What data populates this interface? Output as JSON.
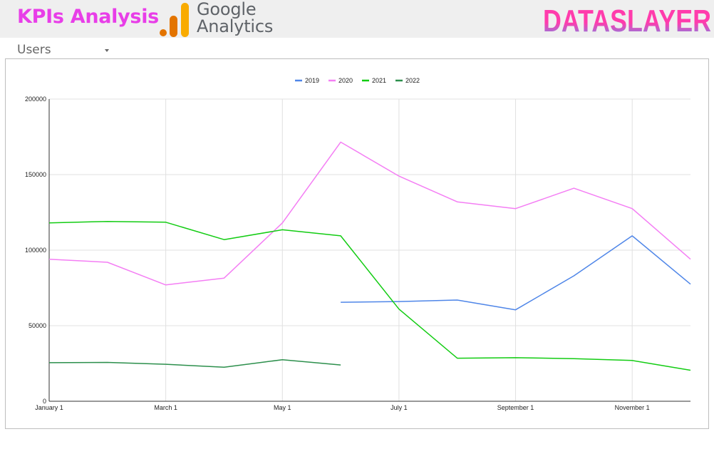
{
  "header": {
    "title": "KPIs Analysis",
    "google_logo": {
      "word1": "Google",
      "word2": "Analytics"
    },
    "brand_logo": "DATASLAYER",
    "colors": {
      "title": "#e83ee8",
      "ga_orange": "#f9ab00",
      "ga_dark_orange": "#e37400",
      "ga_text": "#5f6368",
      "brand_pink": "#ff3cac",
      "brand_blue": "#6e8df0"
    }
  },
  "metric_selector": {
    "label": "Users",
    "icon": "caret-down-icon"
  },
  "chart_data": {
    "type": "line",
    "x": [
      "January 1",
      "February 1",
      "March 1",
      "April 1",
      "May 1",
      "June 1",
      "July 1",
      "August 1",
      "September 1",
      "October 1",
      "November 1",
      "December 1"
    ],
    "xticks": [
      "January 1",
      "March 1",
      "May 1",
      "July 1",
      "September 1",
      "November 1"
    ],
    "yticks": [
      "0",
      "50000",
      "100000",
      "150000",
      "200000"
    ],
    "ylim": [
      0,
      200000
    ],
    "grid": true,
    "legend_position": "top-center",
    "series": [
      {
        "name": "2019",
        "color": "#4f86e8",
        "values": [
          null,
          null,
          null,
          null,
          null,
          65500,
          66000,
          67000,
          60500,
          83000,
          109500,
          77500
        ]
      },
      {
        "name": "2020",
        "color": "#f47ef4",
        "values": [
          94000,
          92000,
          77000,
          81500,
          118000,
          171500,
          149000,
          132000,
          127500,
          141000,
          127500,
          94000
        ]
      },
      {
        "name": "2021",
        "color": "#12cc12",
        "values": [
          118000,
          119000,
          118500,
          107000,
          113500,
          109500,
          61000,
          28500,
          28800,
          28200,
          27000,
          20500
        ]
      },
      {
        "name": "2022",
        "color": "#2c8f4c",
        "values": [
          25500,
          25700,
          24500,
          22500,
          27500,
          24000,
          null,
          null,
          null,
          null,
          null,
          null
        ]
      }
    ]
  }
}
